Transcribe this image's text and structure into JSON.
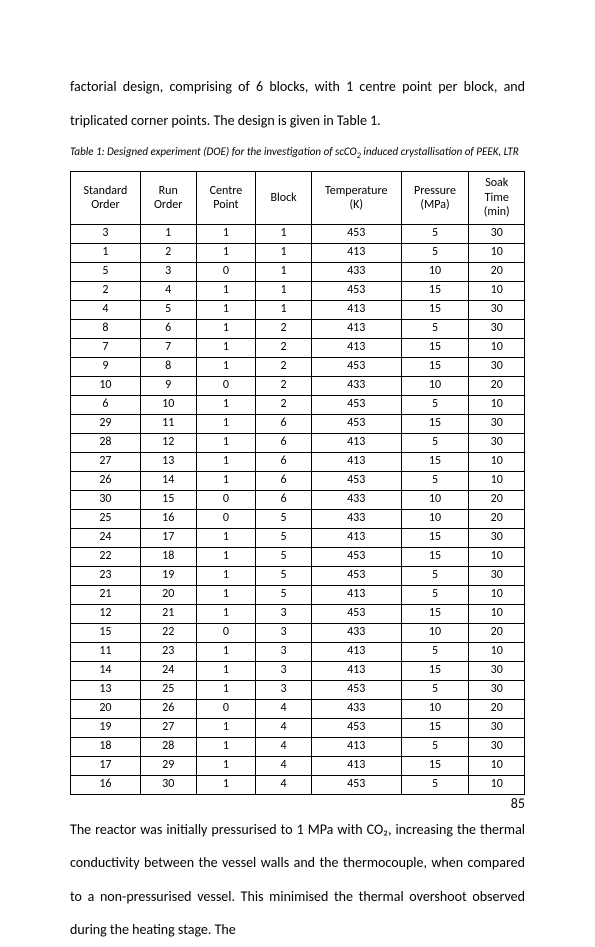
{
  "paragraph_top": "factorial design, comprising of 6 blocks, with 1 centre point per block, and triplicated corner points. The design is given in Table 1.",
  "caption_prefix": "Table 1: Designed experiment (DOE) for the investigation of scCO",
  "caption_subscript": "2",
  "caption_suffix": " induced crystallisation of PEEK, LTR",
  "paragraph_bottom": "The reactor was initially pressurised to 1 MPa with CO₂, increasing the thermal conductivity between the vessel walls and the thermocouple, when compared to a non-pressurised vessel. This minimised the thermal overshoot observed during the heating stage. The",
  "page_number": "85",
  "table": {
    "columns": [
      "Standard Order",
      "Run Order",
      "Centre Point",
      "Block",
      "Temperature (K)",
      "Pressure (MPa)",
      "Soak Time (min)"
    ],
    "rows": [
      [
        "3",
        "1",
        "1",
        "1",
        "453",
        "5",
        "30"
      ],
      [
        "1",
        "2",
        "1",
        "1",
        "413",
        "5",
        "10"
      ],
      [
        "5",
        "3",
        "0",
        "1",
        "433",
        "10",
        "20"
      ],
      [
        "2",
        "4",
        "1",
        "1",
        "453",
        "15",
        "10"
      ],
      [
        "4",
        "5",
        "1",
        "1",
        "413",
        "15",
        "30"
      ],
      [
        "8",
        "6",
        "1",
        "2",
        "413",
        "5",
        "30"
      ],
      [
        "7",
        "7",
        "1",
        "2",
        "413",
        "15",
        "10"
      ],
      [
        "9",
        "8",
        "1",
        "2",
        "453",
        "15",
        "30"
      ],
      [
        "10",
        "9",
        "0",
        "2",
        "433",
        "10",
        "20"
      ],
      [
        "6",
        "10",
        "1",
        "2",
        "453",
        "5",
        "10"
      ],
      [
        "29",
        "11",
        "1",
        "6",
        "453",
        "15",
        "30"
      ],
      [
        "28",
        "12",
        "1",
        "6",
        "413",
        "5",
        "30"
      ],
      [
        "27",
        "13",
        "1",
        "6",
        "413",
        "15",
        "10"
      ],
      [
        "26",
        "14",
        "1",
        "6",
        "453",
        "5",
        "10"
      ],
      [
        "30",
        "15",
        "0",
        "6",
        "433",
        "10",
        "20"
      ],
      [
        "25",
        "16",
        "0",
        "5",
        "433",
        "10",
        "20"
      ],
      [
        "24",
        "17",
        "1",
        "5",
        "413",
        "15",
        "30"
      ],
      [
        "22",
        "18",
        "1",
        "5",
        "453",
        "15",
        "10"
      ],
      [
        "23",
        "19",
        "1",
        "5",
        "453",
        "5",
        "30"
      ],
      [
        "21",
        "20",
        "1",
        "5",
        "413",
        "5",
        "10"
      ],
      [
        "12",
        "21",
        "1",
        "3",
        "453",
        "15",
        "10"
      ],
      [
        "15",
        "22",
        "0",
        "3",
        "433",
        "10",
        "20"
      ],
      [
        "11",
        "23",
        "1",
        "3",
        "413",
        "5",
        "10"
      ],
      [
        "14",
        "24",
        "1",
        "3",
        "413",
        "15",
        "30"
      ],
      [
        "13",
        "25",
        "1",
        "3",
        "453",
        "5",
        "30"
      ],
      [
        "20",
        "26",
        "0",
        "4",
        "433",
        "10",
        "20"
      ],
      [
        "19",
        "27",
        "1",
        "4",
        "453",
        "15",
        "30"
      ],
      [
        "18",
        "28",
        "1",
        "4",
        "413",
        "5",
        "30"
      ],
      [
        "17",
        "29",
        "1",
        "4",
        "413",
        "15",
        "10"
      ],
      [
        "16",
        "30",
        "1",
        "4",
        "453",
        "5",
        "10"
      ]
    ]
  }
}
